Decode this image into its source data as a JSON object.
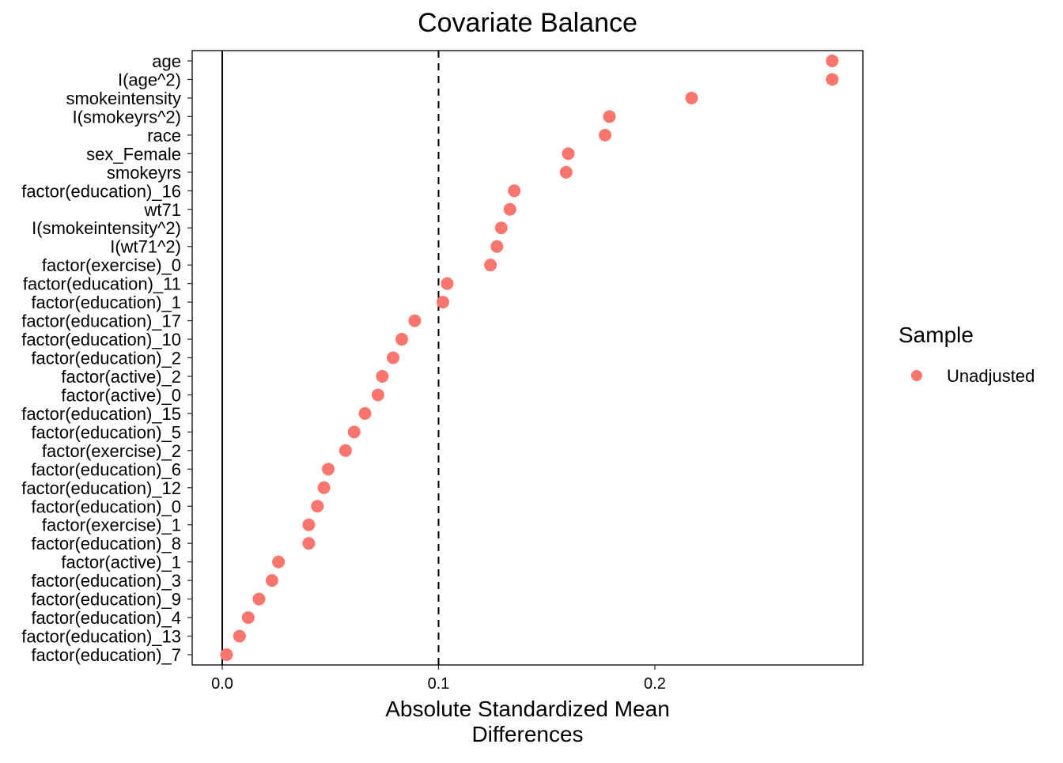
{
  "chart_data": {
    "type": "scatter",
    "title": "Covariate Balance",
    "xlabel": "Absolute Standardized Mean Differences",
    "ylabel": "",
    "xlim": [
      -0.0139,
      0.2962
    ],
    "xticks": [
      0.0,
      0.1,
      0.2
    ],
    "xtick_labels": [
      "0.0",
      "0.1",
      "0.2"
    ],
    "reference_lines": {
      "solid": 0,
      "dashed": 0.1
    },
    "grid": false,
    "legend": {
      "title": "Sample",
      "position": "right",
      "entries": [
        "Unadjusted"
      ]
    },
    "colors": {
      "Unadjusted": "#F8766D"
    },
    "categories": [
      "age",
      "I(age^2)",
      "smokeintensity",
      "I(smokeyrs^2)",
      "race",
      "sex_Female",
      "smokeyrs",
      "factor(education)_16",
      "wt71",
      "I(smokeintensity^2)",
      "I(wt71^2)",
      "factor(exercise)_0",
      "factor(education)_11",
      "factor(education)_1",
      "factor(education)_17",
      "factor(education)_10",
      "factor(education)_2",
      "factor(active)_2",
      "factor(active)_0",
      "factor(education)_15",
      "factor(education)_5",
      "factor(exercise)_2",
      "factor(education)_6",
      "factor(education)_12",
      "factor(education)_0",
      "factor(exercise)_1",
      "factor(education)_8",
      "factor(active)_1",
      "factor(education)_3",
      "factor(education)_9",
      "factor(education)_4",
      "factor(education)_13",
      "factor(education)_7"
    ],
    "series": [
      {
        "name": "Unadjusted",
        "values": [
          0.282,
          0.282,
          0.217,
          0.179,
          0.177,
          0.16,
          0.159,
          0.135,
          0.133,
          0.129,
          0.127,
          0.124,
          0.104,
          0.102,
          0.089,
          0.083,
          0.079,
          0.074,
          0.072,
          0.066,
          0.061,
          0.057,
          0.049,
          0.047,
          0.044,
          0.04,
          0.04,
          0.026,
          0.023,
          0.017,
          0.012,
          0.008,
          0.002
        ]
      }
    ]
  }
}
